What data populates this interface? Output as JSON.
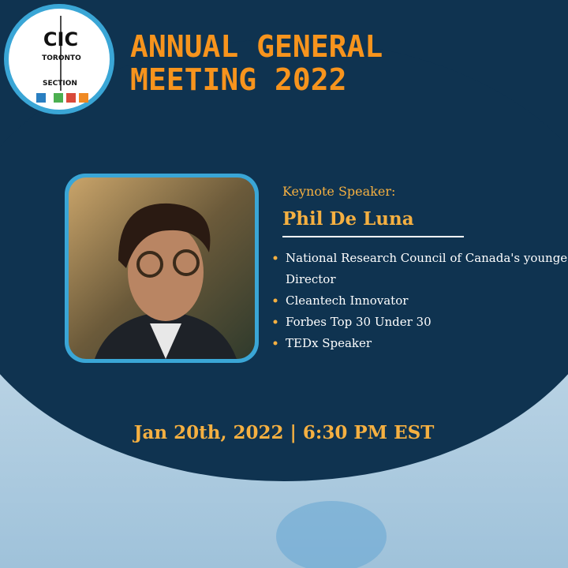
{
  "logo": {
    "letters": "CIC",
    "line1": "TORONTO",
    "line2": "SECTION"
  },
  "title": {
    "line1": "ANNUAL GENERAL",
    "line2": "MEETING 2022"
  },
  "speaker": {
    "heading": "Keynote Speaker:",
    "name": "Phil De Luna",
    "highlights": [
      "National Research Council of Canada's youngest-ever Director",
      "Cleantech Innovator",
      "Forbes Top 30 Under 30",
      "TEDx Speaker"
    ]
  },
  "event": {
    "datetime": "Jan 20th, 2022 | 6:30 PM EST"
  }
}
